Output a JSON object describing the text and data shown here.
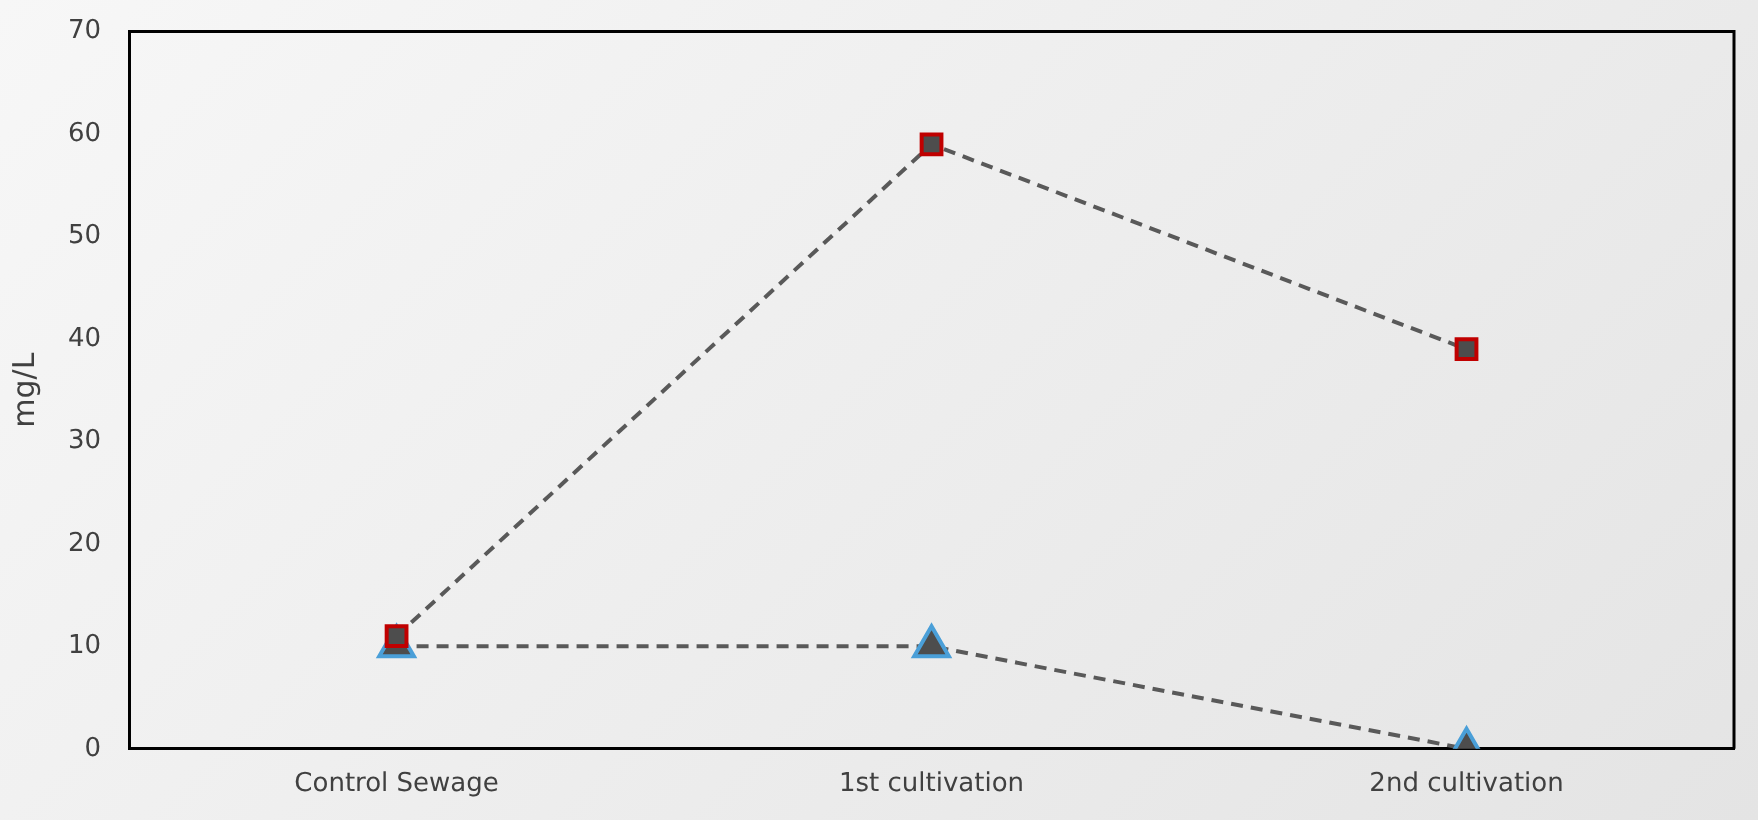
{
  "chart_data": {
    "type": "line",
    "ylabel": "mg/L",
    "categories": [
      "Control Sewage",
      "1st cultivation",
      "2nd cultivation"
    ],
    "series": [
      {
        "color": "#c00000",
        "marker": "square",
        "values": [
          11,
          59,
          39
        ]
      },
      {
        "color": "#4a9fd8",
        "marker": "triangle",
        "values": [
          10,
          10,
          0
        ]
      }
    ],
    "ylim": [
      0,
      70
    ],
    "yticks": [
      0,
      10,
      20,
      30,
      40,
      50,
      60,
      70
    ],
    "grid": false,
    "legend": false,
    "line_style": "dashed"
  }
}
